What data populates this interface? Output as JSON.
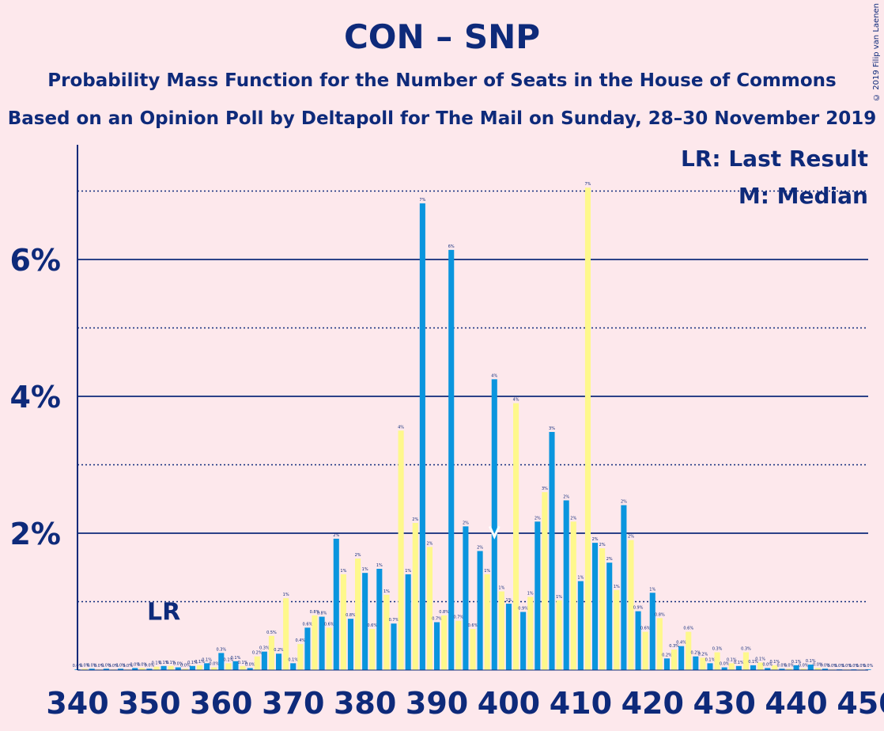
{
  "header": {
    "title": "CON – SNP",
    "subtitle": "Probability Mass Function for the Number of Seats in the House of Commons",
    "subtitle2": "Based on an Opinion Poll by Deltapoll for The Mail on Sunday, 28–30 November 2019",
    "copyright": "© 2019 Filip van Laenen"
  },
  "legend": {
    "last_result": "LR: Last Result",
    "median": "M: Median"
  },
  "chart_data": {
    "type": "bar",
    "title": "CON – SNP",
    "subtitle": "Probability Mass Function for the Number of Seats in the House of Commons",
    "xlim": [
      340,
      450
    ],
    "ylim": [
      0,
      7.5
    ],
    "x_ticks": [
      "340",
      "350",
      "360",
      "370",
      "380",
      "390",
      "400",
      "410",
      "420",
      "430",
      "440",
      "450"
    ],
    "y_ticks": [
      {
        "value": 2,
        "label": "2%"
      },
      {
        "value": 4,
        "label": "4%"
      },
      {
        "value": 6,
        "label": "6%"
      }
    ],
    "gridlines_solid": [
      2,
      4,
      6
    ],
    "gridlines_dotted": [
      1,
      3,
      5,
      7
    ],
    "last_result": {
      "seats": 352,
      "label": "LR"
    },
    "median": {
      "seats": 398,
      "label": "M"
    },
    "colors": {
      "blue": "#0A95DE",
      "yellow": "#FEF88C",
      "axis": "#0E2A7A"
    },
    "seats": [
      340,
      341,
      342,
      343,
      344,
      345,
      346,
      347,
      348,
      349,
      350,
      351,
      352,
      353,
      354,
      355,
      356,
      357,
      358,
      359,
      360,
      361,
      362,
      363,
      364,
      365,
      366,
      367,
      368,
      369,
      370,
      371,
      372,
      373,
      374,
      375,
      376,
      377,
      378,
      379,
      380,
      381,
      382,
      383,
      384,
      385,
      386,
      387,
      388,
      389,
      390,
      391,
      392,
      393,
      394,
      395,
      396,
      397,
      398,
      399,
      400,
      401,
      402,
      403,
      404,
      405,
      406,
      407,
      408,
      409,
      410,
      411,
      412,
      413,
      414,
      415,
      416,
      417,
      418,
      419,
      420,
      421,
      422,
      423,
      424,
      425,
      426,
      427,
      428,
      429,
      430,
      431,
      432,
      433,
      434,
      435,
      436,
      437,
      438,
      439,
      440,
      441,
      442,
      443,
      444,
      445,
      446,
      447,
      448,
      449,
      450
    ],
    "values": [
      0.01,
      0.02,
      0.02,
      0.01,
      0.02,
      0.01,
      0.02,
      0.01,
      0.03,
      0.03,
      0.02,
      0.05,
      0.06,
      0.06,
      0.04,
      0.02,
      0.06,
      0.07,
      0.1,
      0.04,
      0.25,
      0.1,
      0.13,
      0.06,
      0.03,
      0.2,
      0.27,
      0.5,
      0.24,
      1.05,
      0.1,
      0.38,
      0.62,
      0.8,
      0.78,
      0.62,
      1.92,
      1.4,
      0.75,
      1.63,
      1.42,
      0.6,
      1.48,
      1.1,
      0.68,
      3.5,
      1.4,
      2.15,
      6.82,
      1.8,
      0.7,
      0.8,
      6.14,
      0.72,
      2.1,
      0.6,
      1.74,
      1.4,
      4.25,
      1.15,
      0.97,
      3.9,
      0.85,
      1.07,
      2.17,
      2.6,
      3.48,
      1.02,
      2.48,
      2.17,
      1.3,
      7.05,
      1.86,
      1.78,
      1.57,
      1.17,
      2.41,
      1.9,
      0.86,
      0.56,
      1.13,
      0.76,
      0.17,
      0.3,
      0.35,
      0.56,
      0.2,
      0.18,
      0.1,
      0.26,
      0.04,
      0.1,
      0.06,
      0.26,
      0.07,
      0.11,
      0.03,
      0.07,
      0.02,
      0.02,
      0.07,
      0.02,
      0.08,
      0.03,
      0.02,
      0.01,
      0.01,
      0.01,
      0.01,
      0.01,
      0.01
    ]
  }
}
